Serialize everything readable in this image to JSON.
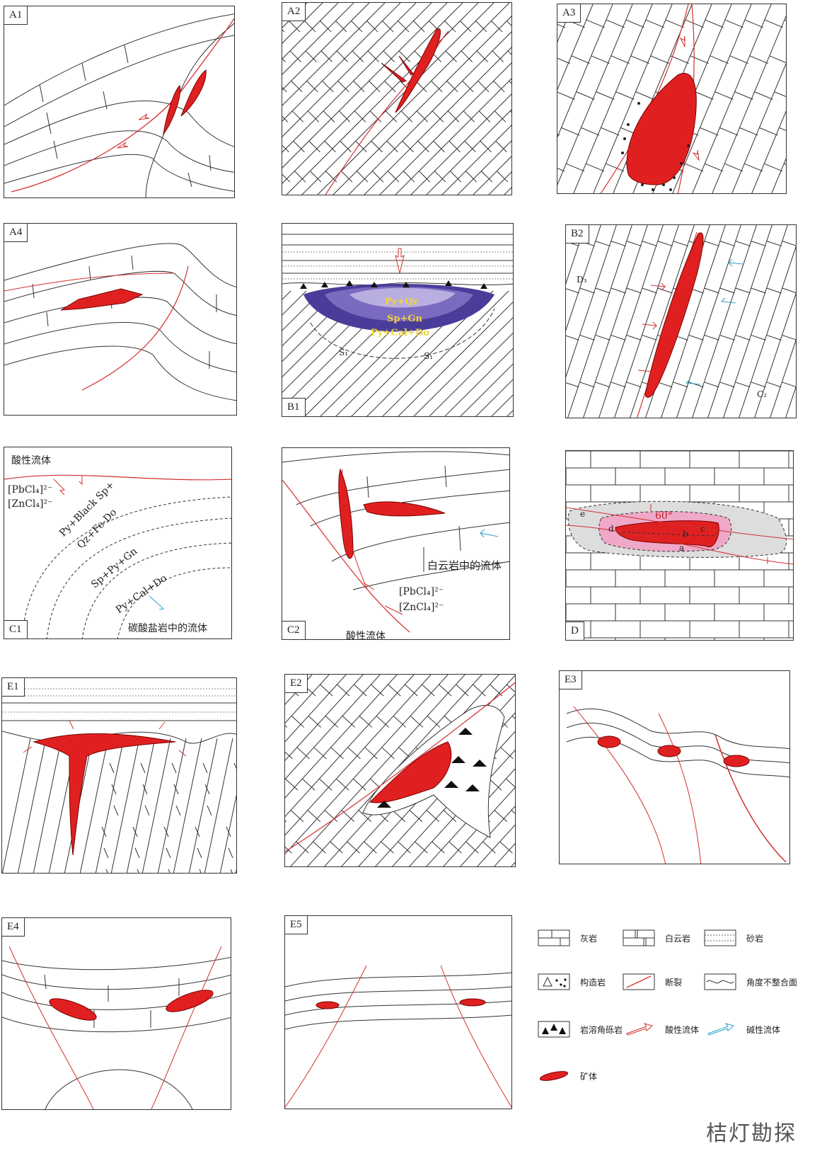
{
  "panels": {
    "A1": "A1",
    "A2": "A2",
    "A3": "A3",
    "A4": "A4",
    "B1": "B1",
    "B2": "B2",
    "C1": "C1",
    "C2": "C2",
    "D": "D",
    "E1": "E1",
    "E2": "E2",
    "E3": "E3",
    "E4": "E4",
    "E5": "E5"
  },
  "b1": {
    "zone1": "Py+Qz",
    "zone2": "Sp+Gn",
    "zone3": "Py+Cal+Do",
    "s1": "S₁",
    "s2": "S₁"
  },
  "b2": {
    "d": "D₃",
    "c": "C₂"
  },
  "c1": {
    "acid": "酸性流体",
    "pb": "[PbCl₄]²⁻",
    "zn": "[ZnCl₄]²⁻",
    "z1": "Py+Black Sp+",
    "z1b": "Qz+Fe-Do",
    "z2": "Sp+Py+Gn",
    "z3": "Py+Cal+Do",
    "carb": "碳酸盐岩中的流体"
  },
  "c2": {
    "dolo": "白云岩中的流体",
    "pb": "[PbCl₄]²⁻",
    "zn": "[ZnCl₄]²⁻",
    "acid": "酸性流体"
  },
  "d": {
    "angle": "60°",
    "a": "a",
    "b": "b",
    "c": "c",
    "d": "d",
    "e": "e"
  },
  "legend": {
    "limestone": "灰岩",
    "dolomite": "白云岩",
    "sandstone": "砂岩",
    "tectonite": "构造岩",
    "fault": "断裂",
    "unconformity": "角度不整合面",
    "breccia": "岩溶角砾岩",
    "acid_fluid": "酸性流体",
    "alkaline_fluid": "碱性流体",
    "orebody": "矿体"
  },
  "watermark": "桔灯勘探",
  "colors": {
    "ore": "#e02020",
    "fault": "#d33030",
    "alkaline": "#2aa0c8",
    "halo_pink": "#f0a8c8",
    "halo_grey": "#dddddd"
  }
}
